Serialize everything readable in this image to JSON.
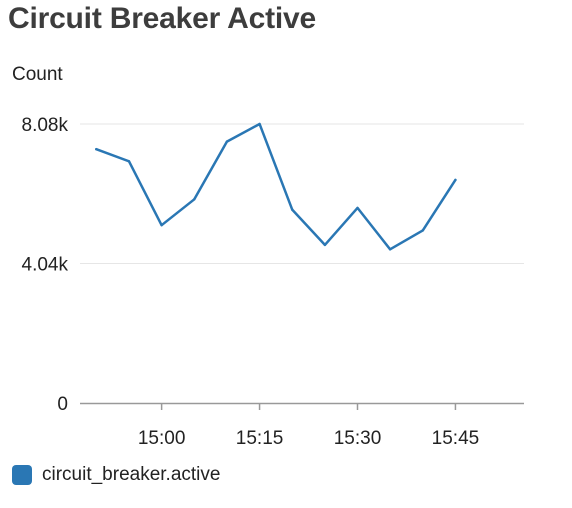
{
  "chart_data": {
    "type": "line",
    "title": "Circuit Breaker Active",
    "ylabel": "Count",
    "xlabel": "",
    "y_ticks": [
      "0",
      "4.04k",
      "8.08k"
    ],
    "y_tick_values": [
      0,
      4040,
      8080
    ],
    "ylim": [
      0,
      8080
    ],
    "x_ticks": [
      "15:00",
      "15:15",
      "15:30",
      "15:45"
    ],
    "x_tick_values": [
      "15:00",
      "15:15",
      "15:30",
      "15:45"
    ],
    "xlim": [
      "14:50",
      "15:55"
    ],
    "grid": true,
    "legend_position": "bottom-left",
    "series": [
      {
        "name": "circuit_breaker.active",
        "color": "#2a77b4",
        "x": [
          "14:50",
          "14:55",
          "15:00",
          "15:05",
          "15:10",
          "15:15",
          "15:20",
          "15:25",
          "15:30",
          "15:35",
          "15:40",
          "15:45"
        ],
        "values": [
          7350,
          7000,
          5150,
          5900,
          7570,
          8080,
          5600,
          4580,
          5650,
          4450,
          5000,
          6460
        ]
      }
    ]
  }
}
